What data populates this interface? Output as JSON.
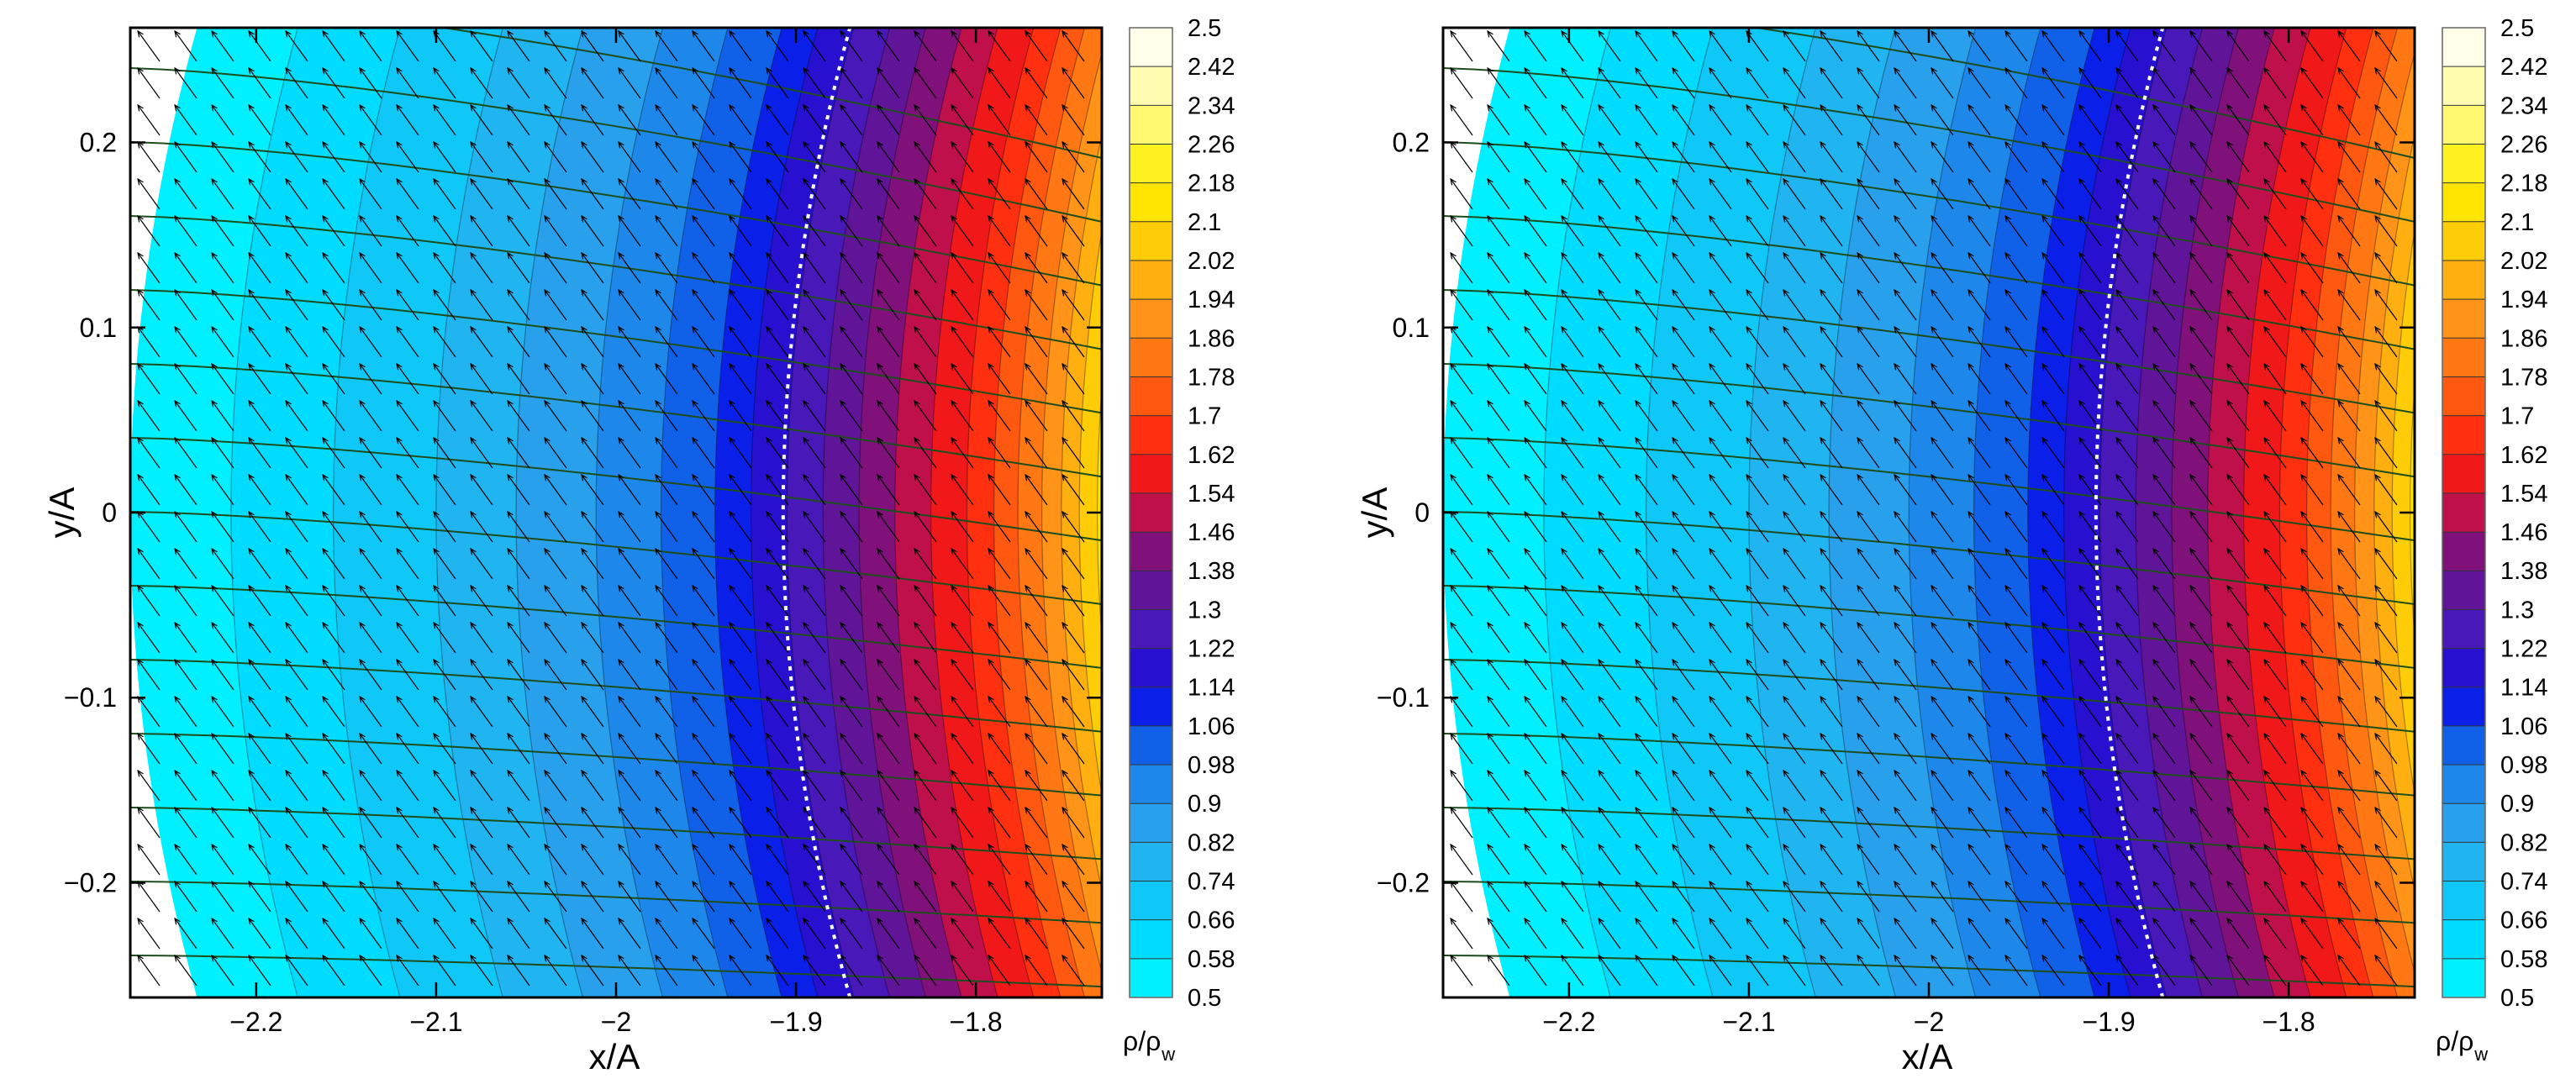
{
  "chart_data": [
    {
      "type": "contour",
      "xlabel": "x/A",
      "ylabel": "y/A",
      "xlim": [
        -2.27,
        -1.73
      ],
      "ylim": [
        -0.262,
        0.262
      ],
      "xticks": [
        {
          "value": -2.2,
          "label": "−2.2"
        },
        {
          "value": -2.1,
          "label": "−2.1"
        },
        {
          "value": -2,
          "label": "−2"
        },
        {
          "value": -1.9,
          "label": "−1.9"
        },
        {
          "value": -1.8,
          "label": "−1.8"
        }
      ],
      "yticks": [
        {
          "value": -0.2,
          "label": "−0.2"
        },
        {
          "value": -0.1,
          "label": "−0.1"
        },
        0,
        0.1,
        0.2
      ],
      "x": [
        -2.27,
        -2.2,
        -2.1,
        -2.0,
        -1.95,
        -1.9,
        -1.85,
        -1.8,
        -1.76,
        -1.73
      ],
      "values": [
        0.5,
        0.6,
        0.74,
        0.92,
        1.04,
        1.24,
        1.44,
        1.64,
        1.88,
        2.12
      ],
      "colorbar": {
        "label": "ρ/ρ",
        "label_subscript": "w",
        "levels": [
          0.5,
          0.58,
          0.66,
          0.74,
          0.82,
          0.9,
          0.98,
          1.06,
          1.14,
          1.22,
          1.3,
          1.38,
          1.46,
          1.54,
          1.62,
          1.7,
          1.78,
          1.86,
          1.94,
          2.02,
          2.1,
          2.18,
          2.26,
          2.34,
          2.42,
          2.5
        ],
        "colors": [
          "#00f0ff",
          "#00dcff",
          "#10c8f8",
          "#20b4f0",
          "#28a0ec",
          "#1e88ea",
          "#1060e8",
          "#0a20e8",
          "#2810d0",
          "#4818b8",
          "#601498",
          "#80107a",
          "#c0104c",
          "#f01818",
          "#ff3010",
          "#ff5810",
          "#ff7814",
          "#ff9418",
          "#ffb010",
          "#ffcc08",
          "#ffe400",
          "#fff020",
          "#fff870",
          "#fffcb0",
          "#fffee8"
        ]
      }
    },
    {
      "type": "contour",
      "xlabel": "x/A",
      "ylabel": "y/A",
      "xlim": [
        -2.27,
        -1.73
      ],
      "ylim": [
        -0.262,
        0.262
      ],
      "xticks": [
        {
          "value": -2.2,
          "label": "−2.2"
        },
        {
          "value": -2.1,
          "label": "−2.1"
        },
        {
          "value": -2,
          "label": "−2"
        },
        {
          "value": -1.9,
          "label": "−1.9"
        },
        {
          "value": -1.8,
          "label": "−1.8"
        }
      ],
      "yticks": [
        {
          "value": -0.2,
          "label": "−0.2"
        },
        {
          "value": -0.1,
          "label": "−0.1"
        },
        0,
        0.1,
        0.2
      ],
      "x": [
        -2.27,
        -2.2,
        -2.1,
        -2.0,
        -1.95,
        -1.9,
        -1.85,
        -1.8,
        -1.76,
        -1.73
      ],
      "values": [
        0.5,
        0.6,
        0.74,
        0.92,
        1.04,
        1.24,
        1.44,
        1.64,
        1.88,
        2.12
      ],
      "colorbar": {
        "label": "ρ/ρ",
        "label_subscript": "w",
        "levels": [
          0.5,
          0.58,
          0.66,
          0.74,
          0.82,
          0.9,
          0.98,
          1.06,
          1.14,
          1.22,
          1.3,
          1.38,
          1.46,
          1.54,
          1.62,
          1.7,
          1.78,
          1.86,
          1.94,
          2.02,
          2.1,
          2.18,
          2.26,
          2.34,
          2.42,
          2.5
        ],
        "colors": [
          "#00f0ff",
          "#00dcff",
          "#10c8f8",
          "#20b4f0",
          "#28a0ec",
          "#1e88ea",
          "#1060e8",
          "#0a20e8",
          "#2810d0",
          "#4818b8",
          "#601498",
          "#80107a",
          "#c0104c",
          "#f01818",
          "#ff3010",
          "#ff5810",
          "#ff7814",
          "#ff9418",
          "#ffb010",
          "#ffcc08",
          "#ffe400",
          "#fff020",
          "#fff870",
          "#fffcb0",
          "#fffee8"
        ]
      }
    }
  ]
}
